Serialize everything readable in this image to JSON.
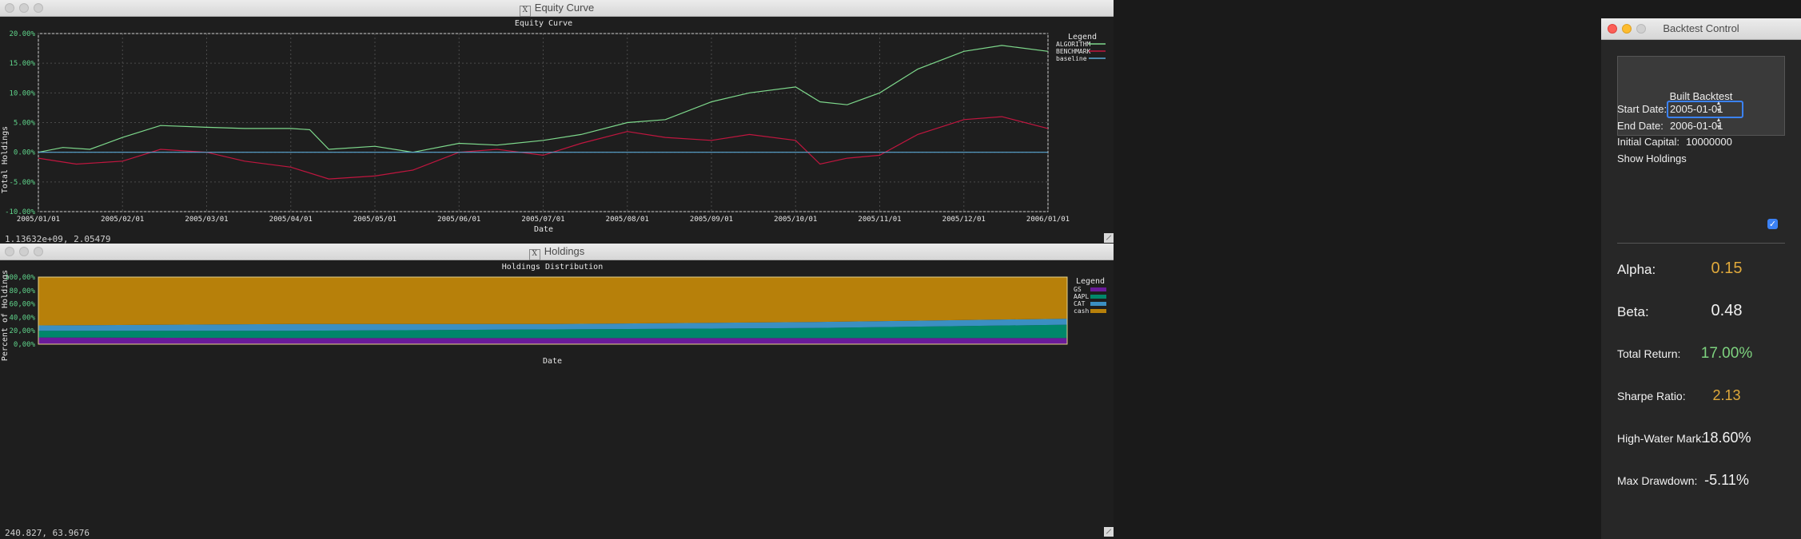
{
  "equity_window": {
    "title": "Equity Curve",
    "chart_title": "Equity Curve",
    "ylabel": "Total Holdings",
    "xlabel": "Date",
    "status": "1.13632e+09,  2.05479",
    "legend_title": "Legend"
  },
  "holdings_window": {
    "title": "Holdings",
    "chart_title": "Holdings Distribution",
    "ylabel": "Percent of Holdings",
    "xlabel": "Date",
    "status": "240.827,  63.9676",
    "legend_title": "Legend"
  },
  "control": {
    "title": "Backtest Control",
    "build_button": "Built Backtest",
    "start_label": "Start Date:",
    "start_value": "2005-01-01",
    "end_label": "End Date:",
    "end_value": "2006-01-01",
    "capital_label": "Initial Capital:",
    "capital_value": "10000000",
    "show_holdings_label": "Show Holdings",
    "show_holdings_checked": true,
    "metrics": [
      {
        "label": "Alpha:",
        "value": "0.15",
        "color": "#e0a93b"
      },
      {
        "label": "Beta:",
        "value": "0.48",
        "color": "#f2f2f2"
      },
      {
        "label": "Total Return:",
        "value": "17.00%",
        "color": "#7ed37f"
      },
      {
        "label": "Sharpe Ratio:",
        "value": "2.13",
        "color": "#e0a93b"
      },
      {
        "label": "High-Water Mark:",
        "value": "18.60%",
        "color": "#f2f2f2"
      },
      {
        "label": "Max Drawdown:",
        "value": "-5.11%",
        "color": "#f2f2f2"
      }
    ]
  },
  "chart_data": [
    {
      "type": "line",
      "title": "Equity Curve",
      "xlabel": "Date",
      "ylabel": "Total Holdings",
      "x_ticks": [
        "2005/01/01",
        "2005/02/01",
        "2005/03/01",
        "2005/04/01",
        "2005/05/01",
        "2005/06/01",
        "2005/07/01",
        "2005/08/01",
        "2005/09/01",
        "2005/10/01",
        "2005/11/01",
        "2005/12/01",
        "2006/01/01"
      ],
      "y_ticks": [
        "20.00%",
        "15.00%",
        "10.00%",
        "5.00%",
        "0.00%",
        "-5.00%",
        "-10.00%"
      ],
      "ylim": [
        -10,
        20
      ],
      "grid": true,
      "legend": "right",
      "series": [
        {
          "name": "ALGORITHM",
          "color": "#7ed98c",
          "x": [
            "2005/01/01",
            "2005/01/10",
            "2005/01/20",
            "2005/02/01",
            "2005/02/15",
            "2005/03/01",
            "2005/03/15",
            "2005/04/01",
            "2005/04/08",
            "2005/04/15",
            "2005/05/01",
            "2005/05/15",
            "2005/06/01",
            "2005/06/15",
            "2005/07/01",
            "2005/07/15",
            "2005/08/01",
            "2005/08/15",
            "2005/09/01",
            "2005/09/15",
            "2005/10/01",
            "2005/10/10",
            "2005/10/20",
            "2005/11/01",
            "2005/11/15",
            "2005/12/01",
            "2005/12/15",
            "2006/01/01"
          ],
          "y": [
            0.0,
            0.8,
            0.5,
            2.5,
            4.5,
            4.2,
            4.0,
            4.0,
            3.8,
            0.5,
            1.0,
            0.0,
            1.5,
            1.2,
            2.0,
            3.0,
            5.0,
            5.5,
            8.5,
            10.0,
            11.0,
            8.5,
            8.0,
            10.0,
            14.0,
            17.0,
            18.0,
            17.0
          ]
        },
        {
          "name": "BENCHMARK",
          "color": "#c0163f",
          "x": [
            "2005/01/01",
            "2005/01/15",
            "2005/02/01",
            "2005/02/15",
            "2005/03/01",
            "2005/03/15",
            "2005/04/01",
            "2005/04/15",
            "2005/05/01",
            "2005/05/15",
            "2005/06/01",
            "2005/06/15",
            "2005/07/01",
            "2005/07/15",
            "2005/08/01",
            "2005/08/15",
            "2005/09/01",
            "2005/09/15",
            "2005/10/01",
            "2005/10/10",
            "2005/10/20",
            "2005/11/01",
            "2005/11/15",
            "2005/12/01",
            "2005/12/15",
            "2006/01/01"
          ],
          "y": [
            -1.0,
            -2.0,
            -1.5,
            0.5,
            0.0,
            -1.5,
            -2.5,
            -4.5,
            -4.0,
            -3.0,
            0.0,
            0.5,
            -0.5,
            1.5,
            3.5,
            2.5,
            2.0,
            3.0,
            2.0,
            -2.0,
            -1.0,
            -0.5,
            3.0,
            5.5,
            6.0,
            4.0
          ]
        },
        {
          "name": "baseline",
          "color": "#5ba9d6",
          "x": [
            "2005/01/01",
            "2006/01/01"
          ],
          "y": [
            0,
            0
          ]
        }
      ]
    },
    {
      "type": "area",
      "title": "Holdings Distribution",
      "xlabel": "Date",
      "ylabel": "Percent of Holdings",
      "y_ticks": [
        "100,00%",
        "80,00%",
        "60,00%",
        "40,00%",
        "20,00%",
        "0,00%"
      ],
      "ylim": [
        0,
        100
      ],
      "stacked": true,
      "legend": "right",
      "x_fraction": [
        0.0,
        0.25,
        0.5,
        0.75,
        1.0
      ],
      "series": [
        {
          "name": "GS",
          "color": "#6a1b9a",
          "values": [
            10,
            9,
            9,
            9,
            9
          ]
        },
        {
          "name": "AAPL",
          "color": "#00876a",
          "values": [
            10,
            11,
            13,
            15,
            20
          ]
        },
        {
          "name": "CAT",
          "color": "#3b8fc2",
          "values": [
            8,
            10,
            8,
            9,
            9
          ]
        },
        {
          "name": "cash",
          "color": "#b7800a",
          "values": [
            72,
            70,
            70,
            67,
            62
          ]
        }
      ]
    }
  ]
}
